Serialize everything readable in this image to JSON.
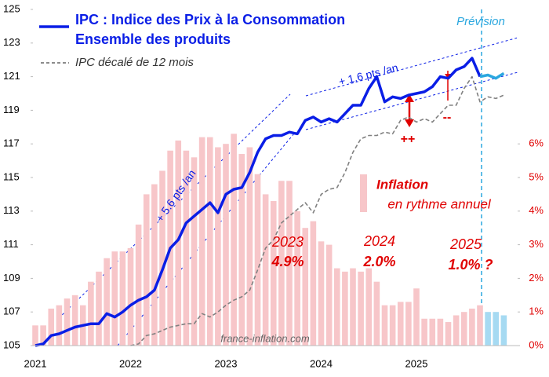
{
  "chart_data": {
    "type": "line",
    "title": "IPC : Indice des Prix à la Consommation",
    "subtitle": "Ensemble des produits",
    "categories": [
      "2021",
      null,
      null,
      null,
      null,
      null,
      null,
      null,
      null,
      null,
      null,
      null,
      "2022",
      null,
      null,
      null,
      null,
      null,
      null,
      null,
      null,
      null,
      null,
      null,
      "2023",
      null,
      null,
      null,
      null,
      null,
      null,
      null,
      null,
      null,
      null,
      null,
      "2024",
      null,
      null,
      null,
      null,
      null,
      null,
      null,
      null,
      null,
      null,
      null,
      "2025",
      null,
      null,
      null,
      null,
      null,
      null,
      null,
      null,
      null,
      null,
      null
    ],
    "series": [
      {
        "name": "IPC : Indice des Prix à la Consommation",
        "color": "#0a1ee6",
        "style": "line",
        "values": [
          105.0,
          105.1,
          105.6,
          105.7,
          105.9,
          106.1,
          106.2,
          106.3,
          106.3,
          106.9,
          106.7,
          107.0,
          107.4,
          107.7,
          107.9,
          108.3,
          109.5,
          110.8,
          111.3,
          112.3,
          112.7,
          113.1,
          113.5,
          112.9,
          114.0,
          114.3,
          114.4,
          115.3,
          116.5,
          117.3,
          117.5,
          117.5,
          117.7,
          117.6,
          118.4,
          118.6,
          118.3,
          118.5,
          118.3,
          118.8,
          119.3,
          119.3,
          120.3,
          121.0,
          119.5,
          119.8,
          119.7,
          119.9,
          120.0,
          120.1,
          120.4,
          121.0,
          120.9,
          121.4,
          121.6,
          122.1,
          121.0,
          null,
          null,
          null
        ]
      },
      {
        "color": "#2aa7df",
        "style": "line",
        "values": [
          null,
          null,
          null,
          null,
          null,
          null,
          null,
          null,
          null,
          null,
          null,
          null,
          null,
          null,
          null,
          null,
          null,
          null,
          null,
          null,
          null,
          null,
          null,
          null,
          null,
          null,
          null,
          null,
          null,
          null,
          null,
          null,
          null,
          null,
          null,
          null,
          null,
          null,
          null,
          null,
          null,
          null,
          null,
          null,
          null,
          null,
          null,
          null,
          null,
          null,
          null,
          null,
          null,
          null,
          null,
          null,
          121.0,
          121.1,
          120.9,
          121.2
        ]
      },
      {
        "name": "IPC décalé de 12 mois",
        "color": "#808080",
        "style": "dashed",
        "values": [
          null,
          null,
          null,
          null,
          null,
          null,
          null,
          null,
          null,
          null,
          null,
          null,
          105.0,
          105.1,
          105.6,
          105.7,
          105.9,
          106.1,
          106.2,
          106.3,
          106.3,
          106.9,
          106.7,
          107.0,
          107.4,
          107.7,
          107.9,
          108.3,
          109.5,
          110.8,
          111.3,
          112.3,
          112.7,
          113.1,
          113.5,
          112.9,
          114.0,
          114.3,
          114.4,
          115.3,
          116.5,
          117.3,
          117.5,
          117.5,
          117.7,
          117.6,
          118.4,
          118.6,
          118.3,
          118.5,
          118.3,
          118.8,
          119.3,
          119.3,
          120.3,
          121.0,
          119.5,
          119.8,
          119.7,
          119.9
        ]
      },
      {
        "name": "Inflation",
        "color": "#f7c6c9",
        "style": "bar",
        "axis": "y2",
        "values": [
          0.6,
          0.6,
          1.1,
          1.2,
          1.4,
          1.5,
          1.2,
          1.9,
          2.2,
          2.6,
          2.8,
          2.8,
          2.9,
          3.6,
          4.5,
          4.8,
          5.2,
          5.8,
          6.1,
          5.8,
          5.6,
          6.2,
          6.2,
          5.9,
          6.0,
          6.3,
          5.7,
          5.9,
          5.1,
          4.5,
          4.3,
          4.9,
          4.9,
          4.0,
          3.5,
          3.7,
          3.1,
          3.0,
          2.3,
          2.2,
          2.3,
          2.2,
          2.3,
          1.9,
          1.2,
          1.2,
          1.3,
          1.3,
          1.7,
          0.8,
          0.8,
          0.8,
          0.7,
          0.9,
          1.0,
          1.1,
          1.2,
          null,
          null,
          null
        ]
      },
      {
        "color": "#a6daf2",
        "style": "bar",
        "axis": "y2",
        "values": [
          null,
          null,
          null,
          null,
          null,
          null,
          null,
          null,
          null,
          null,
          null,
          null,
          null,
          null,
          null,
          null,
          null,
          null,
          null,
          null,
          null,
          null,
          null,
          null,
          null,
          null,
          null,
          null,
          null,
          null,
          null,
          null,
          null,
          null,
          null,
          null,
          null,
          null,
          null,
          null,
          null,
          null,
          null,
          null,
          null,
          null,
          null,
          null,
          null,
          null,
          null,
          null,
          null,
          null,
          null,
          null,
          null,
          1.0,
          1.0,
          0.9
        ]
      }
    ],
    "ylim": [
      105,
      125
    ],
    "yticks": [
      105,
      107,
      109,
      111,
      113,
      115,
      117,
      119,
      121,
      123,
      125
    ],
    "y2lim": [
      0,
      10
    ],
    "y2ticks": [
      {
        "value": 0,
        "label": "0%"
      },
      {
        "value": 1,
        "label": "1%"
      },
      {
        "value": 2,
        "label": "2%"
      },
      {
        "value": 3,
        "label": "3%"
      },
      {
        "value": 4,
        "label": "4%"
      },
      {
        "value": 5,
        "label": "5%"
      },
      {
        "value": 6,
        "label": "6%"
      }
    ],
    "annotations": [
      "+ 1.6 pts /an",
      "+ 5.6 pts /an",
      "++",
      "--",
      "Prévision",
      "2023",
      "4.9%",
      "2024",
      "2.0%",
      "2025",
      "1.0% ?",
      "en rythme annuel",
      "france-inflation.com"
    ]
  }
}
